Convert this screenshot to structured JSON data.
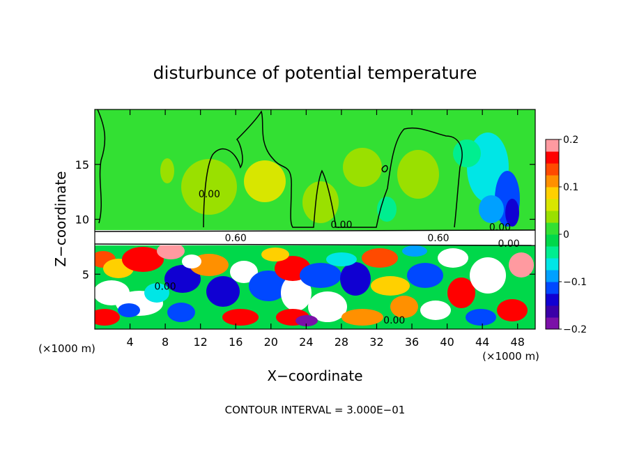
{
  "chart_data": {
    "type": "heatmap",
    "title": "disturbunce of potential temperature",
    "xlabel": "X−coordinate",
    "ylabel": "Z−coordinate",
    "x_unit_left": "(×1000 m)",
    "x_unit_right": "(×1000 m)",
    "footer": "CONTOUR INTERVAL = 3.000E−01",
    "xlim": [
      0,
      50
    ],
    "ylim": [
      0,
      20
    ],
    "x_ticks": [
      4,
      8,
      12,
      16,
      20,
      24,
      28,
      32,
      36,
      40,
      44,
      48
    ],
    "y_ticks": [
      5,
      10,
      15
    ],
    "colorbar": {
      "min": -0.2,
      "max": 0.2,
      "tick_values": [
        0.2,
        0.1,
        0,
        -0.1,
        -0.2
      ],
      "tick_labels": [
        "0.2",
        "0.1",
        "0",
        "−0.1",
        "−0.2"
      ],
      "colors": [
        "#7b11a8",
        "#3a00a8",
        "#1000d2",
        "#0048ff",
        "#00a0ff",
        "#00e6e6",
        "#00ee90",
        "#00d84a",
        "#33e033",
        "#9ae000",
        "#d8e600",
        "#ffd000",
        "#ff9000",
        "#ff4a00",
        "#ff0000",
        "#ff9aa0"
      ]
    },
    "contour_labels": [
      {
        "text": "0.00",
        "x": 13.0,
        "y": 12.0
      },
      {
        "text": "0.00",
        "x": 28.0,
        "y": 9.2
      },
      {
        "text": "0.60",
        "x": 16.0,
        "y": 8.0
      },
      {
        "text": "0.60",
        "x": 39.0,
        "y": 8.0
      },
      {
        "text": "0.00",
        "x": 47.0,
        "y": 7.5
      },
      {
        "text": "0.00",
        "x": 46.0,
        "y": 9.0
      },
      {
        "text": "0.00",
        "x": 8.0,
        "y": 3.6
      },
      {
        "text": "0.00",
        "x": 34.0,
        "y": 0.5
      }
    ]
  }
}
